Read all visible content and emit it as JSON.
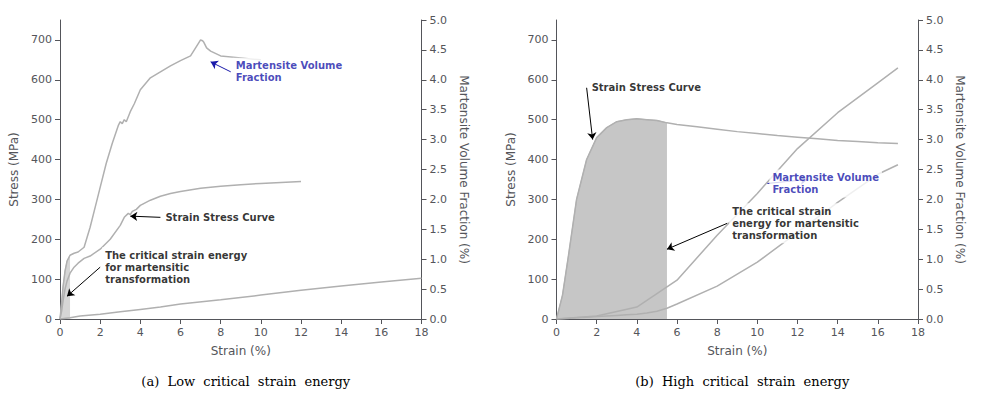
{
  "chart_data": [
    {
      "type": "line",
      "title": "(a)  Low  critical  strain  energy",
      "xlabel": "Strain (%)",
      "ylabel": "Stress (MPa)",
      "y2label": "Martensite Volume Fraction (%)",
      "xlim": [
        0,
        18
      ],
      "ylim": [
        0,
        750
      ],
      "y2lim": [
        0,
        5.0
      ],
      "xticks": [
        0,
        2,
        4,
        6,
        8,
        10,
        12,
        14,
        16,
        18
      ],
      "yticks": [
        0,
        100,
        200,
        300,
        400,
        500,
        600,
        700
      ],
      "y2ticks": [
        {
          "value": 0.0,
          "label": "0.0"
        },
        0.5,
        {
          "value": 1.0,
          "label": "1.0"
        },
        1.5,
        {
          "value": 2.0,
          "label": "2.0"
        },
        2.5,
        {
          "value": 3.0,
          "label": "3.0"
        },
        3.5,
        {
          "value": 4.0,
          "label": "4.0"
        },
        4.5,
        {
          "value": 5.0,
          "label": "5.0"
        }
      ],
      "grid": false,
      "series": [
        {
          "x": [
            0,
            0.08,
            0.15,
            0.25,
            0.35,
            0.5,
            0.7,
            0.9,
            1.2,
            1.5,
            1.8,
            2.0,
            2.3,
            2.6,
            2.9,
            3.0,
            3.1,
            3.2,
            3.3,
            3.5,
            3.7,
            4.0,
            4.5,
            5.0,
            5.5,
            6.0,
            6.5,
            6.9,
            7.0,
            7.1,
            7.15,
            7.2,
            7.3,
            7.5,
            8.0,
            9.0,
            10.0
          ],
          "values": [
            0,
            40,
            80,
            120,
            145,
            160,
            165,
            168,
            180,
            230,
            290,
            330,
            390,
            440,
            485,
            495,
            490,
            500,
            495,
            520,
            540,
            575,
            605,
            620,
            635,
            648,
            660,
            692,
            700,
            698,
            695,
            690,
            680,
            672,
            660,
            655,
            650
          ],
          "color": "#b0b0b0"
        },
        {
          "x": [
            0,
            0.08,
            0.15,
            0.25,
            0.35,
            0.5,
            0.7,
            0.9,
            1.2,
            1.5,
            2.0,
            2.5,
            3.0,
            3.2,
            3.4,
            3.5,
            3.6,
            3.8,
            4.0,
            4.5,
            5.0,
            5.5,
            6.0,
            7.0,
            8.0,
            9.0,
            10.0,
            12.0
          ],
          "values": [
            0,
            20,
            45,
            75,
            95,
            115,
            130,
            140,
            152,
            158,
            175,
            200,
            235,
            255,
            265,
            262,
            270,
            275,
            285,
            298,
            308,
            315,
            320,
            328,
            333,
            337,
            340,
            345
          ],
          "color": "#b0b0b0"
        },
        {
          "type": "area",
          "x": [
            0,
            0.08,
            0.15,
            0.25,
            0.35,
            0.5
          ],
          "values": [
            0,
            40,
            80,
            120,
            145,
            160
          ],
          "color": "#cccccc"
        },
        {
          "x": [
            0,
            0.5,
            1.0,
            2.0,
            3.0,
            4.0,
            5.0,
            6.0,
            8.0,
            10.0,
            12.0,
            14.0,
            16.0,
            18.0
          ],
          "values": [
            0,
            0.02,
            0.05,
            0.08,
            0.12,
            0.16,
            0.2,
            0.25,
            0.32,
            0.4,
            0.48,
            0.55,
            0.62,
            0.68
          ],
          "color": "#b0b0b0",
          "axis": "y2"
        }
      ],
      "annotations": [
        {
          "text": "Strain Stress Curve",
          "xy": [
            3.5,
            258
          ],
          "xytext": [
            5.0,
            255
          ],
          "color": "#000000"
        },
        {
          "text": "Martensite Volume\nFraction",
          "xy": [
            7.5,
            645
          ],
          "xytext": [
            8.5,
            620
          ],
          "color": "#1a1aaa"
        },
        {
          "text": "The critical strain energy\nfor martensitic\ntransformation",
          "xy": [
            0.35,
            57
          ],
          "xytext": [
            2.0,
            130
          ],
          "color": "#000000"
        }
      ]
    },
    {
      "type": "line",
      "title": "(b)  High  critical  strain  energy",
      "xlabel": "Strain (%)",
      "ylabel": "Stress (MPa)",
      "y2label": "Martensite Volume Fraction (%)",
      "xlim": [
        0,
        18
      ],
      "ylim": [
        0,
        750
      ],
      "y2lim": [
        0,
        5.0
      ],
      "xticks": [
        0,
        2,
        4,
        6,
        8,
        10,
        12,
        14,
        16,
        18
      ],
      "yticks": [
        0,
        100,
        200,
        300,
        400,
        500,
        600,
        700
      ],
      "y2ticks": [
        {
          "value": 0.0,
          "label": "0.0"
        },
        0.5,
        {
          "value": 1.0,
          "label": "1.0"
        },
        1.5,
        {
          "value": 2.0,
          "label": "2.0"
        },
        2.5,
        {
          "value": 3.0,
          "label": "3.0"
        },
        3.5,
        {
          "value": 4.0,
          "label": "4.0"
        },
        4.5,
        {
          "value": 5.0,
          "label": "5.0"
        }
      ],
      "grid": false,
      "series": [
        {
          "type": "area",
          "x": [
            0,
            0.3,
            0.6,
            1.0,
            1.5,
            2.0,
            2.5,
            3.0,
            3.5,
            4.0,
            4.5,
            5.0,
            5.5
          ],
          "values": [
            0,
            60,
            160,
            300,
            400,
            455,
            480,
            495,
            500,
            502,
            500,
            498,
            492
          ],
          "color": "#b8b8b8"
        },
        {
          "x": [
            0,
            0.3,
            0.6,
            1.0,
            1.5,
            2.0,
            2.5,
            3.0,
            3.5,
            4.0,
            4.5,
            5.0,
            5.5,
            6.0,
            7.0,
            8.0,
            9.0,
            10.0,
            11.0,
            12.0,
            13.0,
            14.0,
            15.0,
            16.0,
            17.0
          ],
          "values": [
            0,
            60,
            160,
            300,
            400,
            455,
            480,
            495,
            500,
            502,
            500,
            498,
            492,
            488,
            482,
            476,
            470,
            465,
            460,
            456,
            452,
            448,
            445,
            442,
            440
          ],
          "color": "#b0b0b0"
        },
        {
          "x": [
            0,
            0.5,
            1.0,
            1.5,
            2.0,
            2.5,
            3.0,
            3.5,
            4.0,
            4.5,
            5.0,
            5.5,
            6.0,
            8.0,
            10.0,
            12.0,
            14.0,
            16.0,
            17.0
          ],
          "values": [
            0,
            0.01,
            0.02,
            0.03,
            0.04,
            0.05,
            0.06,
            0.07,
            0.08,
            0.1,
            0.13,
            0.18,
            0.25,
            0.55,
            0.95,
            1.45,
            1.95,
            2.42,
            2.58
          ],
          "color": "#b0b0b0",
          "axis": "y2"
        },
        {
          "x": [
            0,
            2.0,
            4.0,
            6.0,
            8.0,
            10.0,
            12.0,
            14.0,
            16.0,
            17.0
          ],
          "values": [
            0,
            0.05,
            0.2,
            0.65,
            1.4,
            2.1,
            2.85,
            3.45,
            3.95,
            4.2
          ],
          "color": "#b0b0b0",
          "axis": "y2"
        }
      ],
      "annotations": [
        {
          "text": "Strain Stress Curve",
          "xy": [
            1.8,
            450
          ],
          "xytext": [
            1.5,
            580
          ],
          "color": "#000000"
        },
        {
          "text": "Martensite Volume\nFraction",
          "xy": [
            12.5,
            350
          ],
          "xytext": [
            10.5,
            340
          ],
          "color": "#1a1aaa"
        },
        {
          "text": "The critical strain\nenergy for martensitic\ntransformation",
          "xy": [
            5.5,
            175
          ],
          "xytext": [
            8.5,
            240
          ],
          "color": "#000000"
        }
      ]
    }
  ]
}
